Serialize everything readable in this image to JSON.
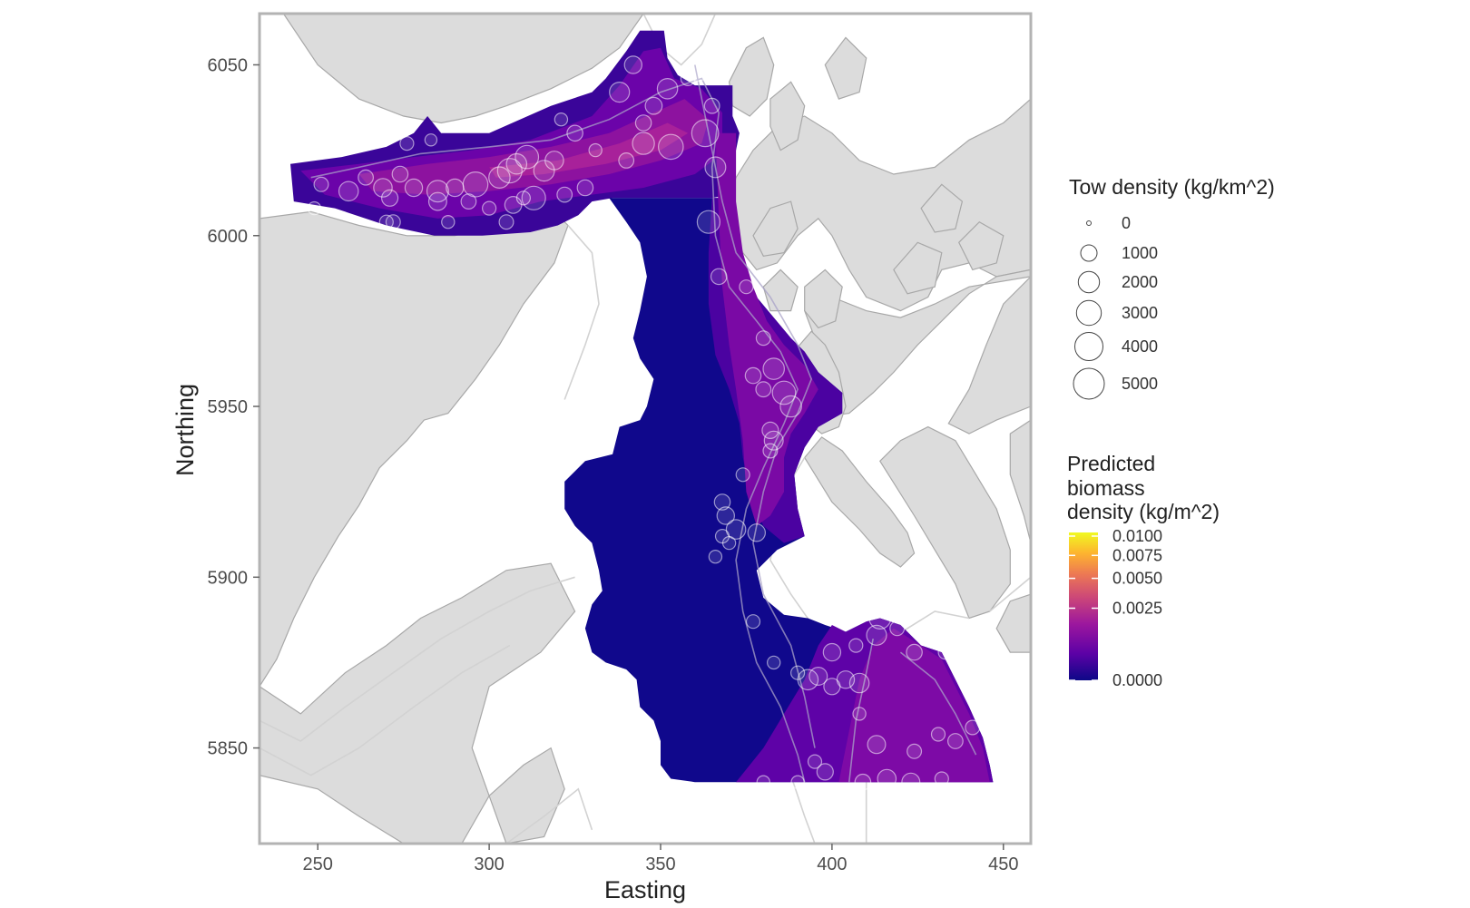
{
  "chart_data": {
    "type": "map",
    "xlabel": "Easting",
    "ylabel": "Northing",
    "xlim": [
      233,
      458
    ],
    "ylim": [
      5822,
      6065
    ],
    "x_ticks": [
      250,
      300,
      350,
      400,
      450
    ],
    "y_ticks": [
      5850,
      5900,
      5950,
      6000,
      6050
    ],
    "x_tick_labels": [
      "250",
      "300",
      "350",
      "400",
      "450"
    ],
    "y_tick_labels": [
      "5850",
      "5900",
      "5950",
      "6000",
      "6050"
    ],
    "grid": false,
    "legend_position": "right",
    "size_legend": {
      "title": "Tow density (kg/km^2)",
      "breaks": [
        0,
        1000,
        2000,
        3000,
        4000,
        5000
      ],
      "labels": [
        "0",
        "1000",
        "2000",
        "3000",
        "4000",
        "5000"
      ]
    },
    "color_legend": {
      "title_lines": [
        "Predicted",
        "biomass",
        "density (kg/m^2)"
      ],
      "breaks": [
        0.01,
        0.0075,
        0.005,
        0.0025,
        0.0
      ],
      "labels": [
        "0.0100",
        "0.0075",
        "0.0050",
        "0.0025",
        "0.0000"
      ],
      "scale": "sqrt",
      "palette": [
        "#0d0887",
        "#5c01a6",
        "#9c179e",
        "#cc4778",
        "#ed7953",
        "#fdb42f",
        "#f0f921"
      ]
    },
    "colors": {
      "land": "#dcdcdc",
      "land_outline": "#a8a8a8",
      "panel_border": "#b3b3b3",
      "tow_circle": "#ffffff",
      "legend_circle": "#444444"
    },
    "tows": [
      {
        "x": 342,
        "y": 6050,
        "d": 1200
      },
      {
        "x": 352,
        "y": 6043,
        "d": 1800
      },
      {
        "x": 345,
        "y": 6033,
        "d": 900
      },
      {
        "x": 361,
        "y": 6048,
        "d": 1500
      },
      {
        "x": 365,
        "y": 6038,
        "d": 800
      },
      {
        "x": 363,
        "y": 6030,
        "d": 3600
      },
      {
        "x": 353,
        "y": 6026,
        "d": 3000
      },
      {
        "x": 345,
        "y": 6027,
        "d": 2200
      },
      {
        "x": 348,
        "y": 6038,
        "d": 1100
      },
      {
        "x": 338,
        "y": 6042,
        "d": 1700
      },
      {
        "x": 340,
        "y": 6022,
        "d": 800
      },
      {
        "x": 331,
        "y": 6025,
        "d": 500
      },
      {
        "x": 325,
        "y": 6030,
        "d": 900
      },
      {
        "x": 319,
        "y": 6022,
        "d": 1400
      },
      {
        "x": 316,
        "y": 6019,
        "d": 1900
      },
      {
        "x": 311,
        "y": 6023,
        "d": 2500
      },
      {
        "x": 308,
        "y": 6021,
        "d": 1800
      },
      {
        "x": 306,
        "y": 6019,
        "d": 2900
      },
      {
        "x": 303,
        "y": 6017,
        "d": 2000
      },
      {
        "x": 296,
        "y": 6015,
        "d": 3000
      },
      {
        "x": 290,
        "y": 6014,
        "d": 1200
      },
      {
        "x": 285,
        "y": 6013,
        "d": 2100
      },
      {
        "x": 278,
        "y": 6014,
        "d": 1200
      },
      {
        "x": 274,
        "y": 6018,
        "d": 900
      },
      {
        "x": 269,
        "y": 6014,
        "d": 1400
      },
      {
        "x": 264,
        "y": 6017,
        "d": 800
      },
      {
        "x": 259,
        "y": 6013,
        "d": 1600
      },
      {
        "x": 251,
        "y": 6015,
        "d": 700
      },
      {
        "x": 271,
        "y": 6011,
        "d": 1000
      },
      {
        "x": 285,
        "y": 6010,
        "d": 1300
      },
      {
        "x": 294,
        "y": 6010,
        "d": 800
      },
      {
        "x": 300,
        "y": 6008,
        "d": 600
      },
      {
        "x": 307,
        "y": 6009,
        "d": 1100
      },
      {
        "x": 310,
        "y": 6011,
        "d": 600
      },
      {
        "x": 313,
        "y": 6011,
        "d": 2600
      },
      {
        "x": 322,
        "y": 6012,
        "d": 800
      },
      {
        "x": 328,
        "y": 6014,
        "d": 900
      },
      {
        "x": 270,
        "y": 6004,
        "d": 600
      },
      {
        "x": 272,
        "y": 6004,
        "d": 700
      },
      {
        "x": 288,
        "y": 6004,
        "d": 500
      },
      {
        "x": 305,
        "y": 6004,
        "d": 700
      },
      {
        "x": 249,
        "y": 6008,
        "d": 500
      },
      {
        "x": 276,
        "y": 6027,
        "d": 600
      },
      {
        "x": 283,
        "y": 6028,
        "d": 400
      },
      {
        "x": 321,
        "y": 6034,
        "d": 500
      },
      {
        "x": 358,
        "y": 6046,
        "d": 700
      },
      {
        "x": 366,
        "y": 6020,
        "d": 1900
      },
      {
        "x": 364,
        "y": 6004,
        "d": 2400
      },
      {
        "x": 367,
        "y": 5988,
        "d": 900
      },
      {
        "x": 375,
        "y": 5985,
        "d": 600
      },
      {
        "x": 380,
        "y": 5970,
        "d": 700
      },
      {
        "x": 383,
        "y": 5961,
        "d": 2000
      },
      {
        "x": 377,
        "y": 5959,
        "d": 900
      },
      {
        "x": 386,
        "y": 5954,
        "d": 2500
      },
      {
        "x": 388,
        "y": 5950,
        "d": 2000
      },
      {
        "x": 380,
        "y": 5955,
        "d": 800
      },
      {
        "x": 382,
        "y": 5943,
        "d": 1000
      },
      {
        "x": 383,
        "y": 5940,
        "d": 1500
      },
      {
        "x": 382,
        "y": 5937,
        "d": 700
      },
      {
        "x": 374,
        "y": 5930,
        "d": 600
      },
      {
        "x": 368,
        "y": 5922,
        "d": 900
      },
      {
        "x": 369,
        "y": 5918,
        "d": 1200
      },
      {
        "x": 372,
        "y": 5914,
        "d": 1600
      },
      {
        "x": 378,
        "y": 5913,
        "d": 1200
      },
      {
        "x": 368,
        "y": 5912,
        "d": 600
      },
      {
        "x": 370,
        "y": 5910,
        "d": 500
      },
      {
        "x": 366,
        "y": 5906,
        "d": 500
      },
      {
        "x": 377,
        "y": 5887,
        "d": 600
      },
      {
        "x": 383,
        "y": 5875,
        "d": 500
      },
      {
        "x": 390,
        "y": 5872,
        "d": 600
      },
      {
        "x": 393,
        "y": 5870,
        "d": 1800
      },
      {
        "x": 396,
        "y": 5871,
        "d": 1300
      },
      {
        "x": 400,
        "y": 5878,
        "d": 1200
      },
      {
        "x": 404,
        "y": 5870,
        "d": 1200
      },
      {
        "x": 408,
        "y": 5869,
        "d": 1600
      },
      {
        "x": 400,
        "y": 5868,
        "d": 1000
      },
      {
        "x": 414,
        "y": 5888,
        "d": 2100
      },
      {
        "x": 413,
        "y": 5883,
        "d": 1700
      },
      {
        "x": 407,
        "y": 5880,
        "d": 600
      },
      {
        "x": 419,
        "y": 5885,
        "d": 700
      },
      {
        "x": 424,
        "y": 5878,
        "d": 900
      },
      {
        "x": 433,
        "y": 5878,
        "d": 600
      },
      {
        "x": 438,
        "y": 5872,
        "d": 600
      },
      {
        "x": 441,
        "y": 5856,
        "d": 700
      },
      {
        "x": 436,
        "y": 5852,
        "d": 800
      },
      {
        "x": 431,
        "y": 5854,
        "d": 600
      },
      {
        "x": 424,
        "y": 5849,
        "d": 700
      },
      {
        "x": 413,
        "y": 5851,
        "d": 1300
      },
      {
        "x": 408,
        "y": 5860,
        "d": 500
      },
      {
        "x": 395,
        "y": 5846,
        "d": 600
      },
      {
        "x": 398,
        "y": 5843,
        "d": 1000
      },
      {
        "x": 409,
        "y": 5840,
        "d": 900
      },
      {
        "x": 416,
        "y": 5841,
        "d": 1400
      },
      {
        "x": 423,
        "y": 5840,
        "d": 1300
      },
      {
        "x": 432,
        "y": 5841,
        "d": 600
      },
      {
        "x": 390,
        "y": 5840,
        "d": 500
      },
      {
        "x": 380,
        "y": 5840,
        "d": 500
      }
    ]
  }
}
